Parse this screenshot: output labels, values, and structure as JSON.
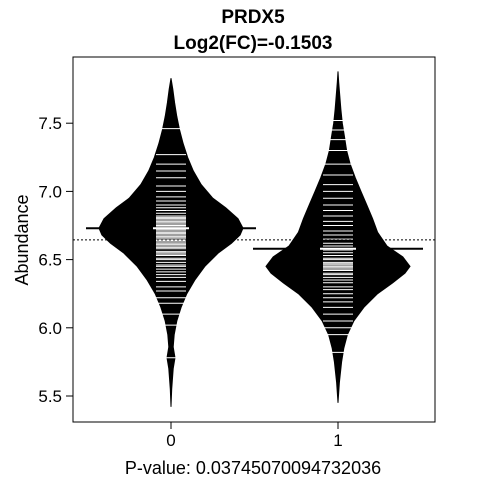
{
  "chart_data": {
    "type": "beanplot",
    "title": "PRDX5",
    "subtitle": "Log2(FC)=-0.1503",
    "xlabel": "P-value: 0.03745070094732036",
    "ylabel": "Abundance",
    "ylim": [
      5.4,
      7.9
    ],
    "y_ticks": [
      "5.5",
      "6.0",
      "6.5",
      "7.0",
      "7.5"
    ],
    "categories": [
      "0",
      "1"
    ],
    "overall_mean": 6.645,
    "groups": [
      {
        "name": "0",
        "mean": 6.73,
        "min": 5.42,
        "max": 7.83,
        "density": [
          [
            5.42,
            0.0
          ],
          [
            5.55,
            0.01
          ],
          [
            5.7,
            0.03
          ],
          [
            5.78,
            0.055
          ],
          [
            5.86,
            0.03
          ],
          [
            5.95,
            0.045
          ],
          [
            6.05,
            0.08
          ],
          [
            6.15,
            0.14
          ],
          [
            6.25,
            0.22
          ],
          [
            6.35,
            0.33
          ],
          [
            6.45,
            0.47
          ],
          [
            6.55,
            0.66
          ],
          [
            6.62,
            0.84
          ],
          [
            6.68,
            0.96
          ],
          [
            6.73,
            1.0
          ],
          [
            6.8,
            0.93
          ],
          [
            6.88,
            0.76
          ],
          [
            6.95,
            0.58
          ],
          [
            7.05,
            0.42
          ],
          [
            7.15,
            0.31
          ],
          [
            7.25,
            0.23
          ],
          [
            7.35,
            0.17
          ],
          [
            7.45,
            0.12
          ],
          [
            7.55,
            0.08
          ],
          [
            7.65,
            0.05
          ],
          [
            7.75,
            0.025
          ],
          [
            7.83,
            0.0
          ]
        ],
        "points": [
          5.78,
          6.02,
          6.1,
          6.18,
          6.22,
          6.27,
          6.3,
          6.34,
          6.37,
          6.39,
          6.41,
          6.43,
          6.45,
          6.46,
          6.48,
          6.5,
          6.51,
          6.53,
          6.54,
          6.55,
          6.56,
          6.58,
          6.59,
          6.6,
          6.61,
          6.62,
          6.63,
          6.64,
          6.65,
          6.66,
          6.67,
          6.68,
          6.69,
          6.7,
          6.71,
          6.72,
          6.73,
          6.74,
          6.75,
          6.76,
          6.77,
          6.78,
          6.79,
          6.8,
          6.81,
          6.82,
          6.84,
          6.86,
          6.88,
          6.9,
          6.93,
          6.96,
          7.0,
          7.04,
          7.1,
          7.15,
          7.2,
          7.27,
          7.46
        ]
      },
      {
        "name": "1",
        "mean": 6.58,
        "min": 5.45,
        "max": 7.88,
        "density": [
          [
            5.45,
            0.0
          ],
          [
            5.6,
            0.02
          ],
          [
            5.75,
            0.05
          ],
          [
            5.85,
            0.08
          ],
          [
            5.95,
            0.13
          ],
          [
            6.05,
            0.22
          ],
          [
            6.15,
            0.36
          ],
          [
            6.25,
            0.55
          ],
          [
            6.33,
            0.76
          ],
          [
            6.4,
            0.93
          ],
          [
            6.45,
            1.0
          ],
          [
            6.52,
            0.9
          ],
          [
            6.6,
            0.68
          ],
          [
            6.7,
            0.55
          ],
          [
            6.8,
            0.48
          ],
          [
            6.9,
            0.4
          ],
          [
            7.0,
            0.32
          ],
          [
            7.1,
            0.24
          ],
          [
            7.2,
            0.17
          ],
          [
            7.3,
            0.12
          ],
          [
            7.4,
            0.09
          ],
          [
            7.5,
            0.06
          ],
          [
            7.6,
            0.04
          ],
          [
            7.7,
            0.025
          ],
          [
            7.8,
            0.01
          ],
          [
            7.88,
            0.0
          ]
        ],
        "points": [
          5.82,
          5.95,
          6.0,
          6.05,
          6.1,
          6.15,
          6.19,
          6.22,
          6.25,
          6.28,
          6.3,
          6.33,
          6.35,
          6.37,
          6.39,
          6.4,
          6.42,
          6.43,
          6.44,
          6.45,
          6.46,
          6.47,
          6.48,
          6.5,
          6.51,
          6.53,
          6.55,
          6.57,
          6.6,
          6.62,
          6.65,
          6.68,
          6.71,
          6.75,
          6.78,
          6.82,
          6.86,
          6.9,
          6.95,
          7.0,
          7.05,
          7.12,
          7.2,
          7.3,
          7.38,
          7.45,
          7.52
        ]
      }
    ],
    "legend": "none",
    "grid": false
  }
}
